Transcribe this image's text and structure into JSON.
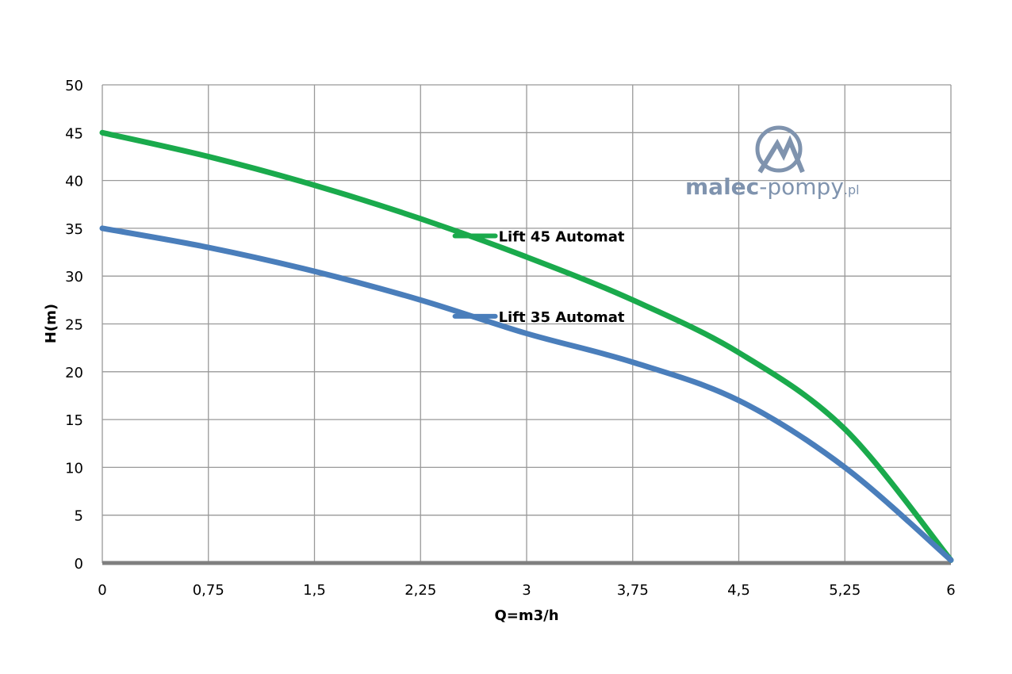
{
  "chart_data": {
    "type": "line",
    "title": "",
    "xlabel": "Q=m3/h",
    "ylabel": "H(m)",
    "xlim": [
      0,
      6
    ],
    "ylim": [
      0,
      50
    ],
    "x_ticks": [
      "0",
      "0,75",
      "1,5",
      "2,25",
      "3",
      "3,75",
      "4,5",
      "5,25",
      "6"
    ],
    "x_tick_values": [
      0,
      0.75,
      1.5,
      2.25,
      3,
      3.75,
      4.5,
      5.25,
      6
    ],
    "y_ticks": [
      "0",
      "5",
      "10",
      "15",
      "20",
      "25",
      "30",
      "35",
      "40",
      "45",
      "50"
    ],
    "y_tick_values": [
      0,
      5,
      10,
      15,
      20,
      25,
      30,
      35,
      40,
      45,
      50
    ],
    "grid": true,
    "legend": "inline labels",
    "series": [
      {
        "name": "Lift 45 Automat",
        "color": "#1aaa4c",
        "x": [
          0,
          0.75,
          1.5,
          2.25,
          3,
          3.75,
          4.5,
          5.25,
          6
        ],
        "y": [
          45,
          42.5,
          39.5,
          36,
          32,
          27.5,
          22,
          14,
          0.3
        ],
        "label_at": [
          2.65,
          34.2
        ]
      },
      {
        "name": "Lift 35 Automat",
        "color": "#4a7ebb",
        "x": [
          0,
          0.75,
          1.5,
          2.25,
          3,
          3.75,
          4.5,
          5.25,
          6
        ],
        "y": [
          35,
          33,
          30.5,
          27.5,
          24,
          21,
          17,
          10,
          0.3
        ],
        "label_at": [
          2.65,
          25.8
        ]
      }
    ]
  },
  "logo": {
    "text": "malec-pompy.pl",
    "color": "#7f93ae"
  }
}
